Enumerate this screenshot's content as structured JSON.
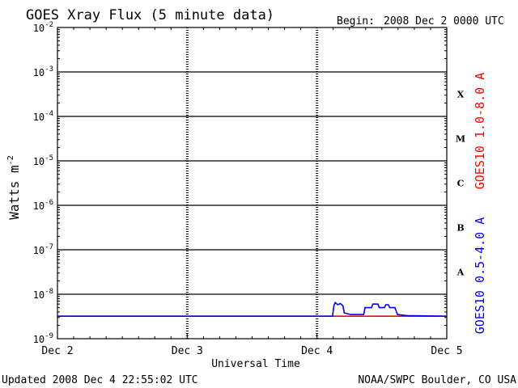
{
  "header": {
    "title": "GOES Xray Flux (5 minute data)",
    "begin_label": "Begin:",
    "begin_value": "2008 Dec 2 0000 UTC"
  },
  "footer": {
    "updated": "Updated 2008 Dec  4 22:55:02 UTC",
    "source": "NOAA/SWPC Boulder, CO USA"
  },
  "colors": {
    "long_channel": "#ff0000",
    "short_channel": "#0000ff",
    "axes": "#000000"
  },
  "chart_data": {
    "type": "line",
    "title": "GOES Xray Flux (5 minute data)",
    "xlabel": "Universal Time",
    "ylabel": "Watts m",
    "ylabel_sup": "-2",
    "y_scale": "log",
    "ylim": [
      1e-09,
      0.01
    ],
    "xlim": [
      0,
      3
    ],
    "x_ticks": [
      {
        "x": 0,
        "label": "Dec 2"
      },
      {
        "x": 1,
        "label": "Dec 3"
      },
      {
        "x": 2,
        "label": "Dec 4"
      },
      {
        "x": 3,
        "label": "Dec 5"
      }
    ],
    "y_ticks": [
      {
        "exp": -9,
        "base": "10",
        "sup": "-9"
      },
      {
        "exp": -8,
        "base": "10",
        "sup": "-8"
      },
      {
        "exp": -7,
        "base": "10",
        "sup": "-7"
      },
      {
        "exp": -6,
        "base": "10",
        "sup": "-6"
      },
      {
        "exp": -5,
        "base": "10",
        "sup": "-5"
      },
      {
        "exp": -4,
        "base": "10",
        "sup": "-4"
      },
      {
        "exp": -3,
        "base": "10",
        "sup": "-3"
      },
      {
        "exp": -2,
        "base": "10",
        "sup": "-2"
      }
    ],
    "flare_classes": [
      {
        "label": "X",
        "exp": -3.5
      },
      {
        "label": "M",
        "exp": -4.5
      },
      {
        "label": "C",
        "exp": -5.5
      },
      {
        "label": "B",
        "exp": -6.5
      },
      {
        "label": "A",
        "exp": -7.5
      }
    ],
    "grid": "horizontal lines at each decade above 1e-8; dashed vertical lines at each day",
    "series": [
      {
        "name": "GOES10 1.0-8.0 A",
        "color": "#ff0000",
        "points": [
          [
            0,
            3.2e-09
          ],
          [
            3,
            3.2e-09
          ]
        ]
      },
      {
        "name": "GOES10 0.5-4.0 A",
        "color": "#0000ff",
        "points": [
          [
            0,
            3.2e-09
          ],
          [
            2.12,
            3.2e-09
          ],
          [
            2.13,
            5.5e-09
          ],
          [
            2.14,
            6.5e-09
          ],
          [
            2.16,
            5.8e-09
          ],
          [
            2.18,
            6.2e-09
          ],
          [
            2.2,
            5.5e-09
          ],
          [
            2.21,
            3.8e-09
          ],
          [
            2.26,
            3.5e-09
          ],
          [
            2.3,
            3.5e-09
          ],
          [
            2.36,
            3.5e-09
          ],
          [
            2.37,
            5e-09
          ],
          [
            2.42,
            5e-09
          ],
          [
            2.43,
            6e-09
          ],
          [
            2.47,
            6e-09
          ],
          [
            2.48,
            5e-09
          ],
          [
            2.52,
            5e-09
          ],
          [
            2.53,
            5.8e-09
          ],
          [
            2.55,
            5.8e-09
          ],
          [
            2.56,
            5e-09
          ],
          [
            2.6,
            5e-09
          ],
          [
            2.62,
            3.5e-09
          ],
          [
            2.66,
            3.4e-09
          ],
          [
            2.7,
            3.3e-09
          ],
          [
            3,
            3.2e-09
          ]
        ]
      }
    ]
  }
}
